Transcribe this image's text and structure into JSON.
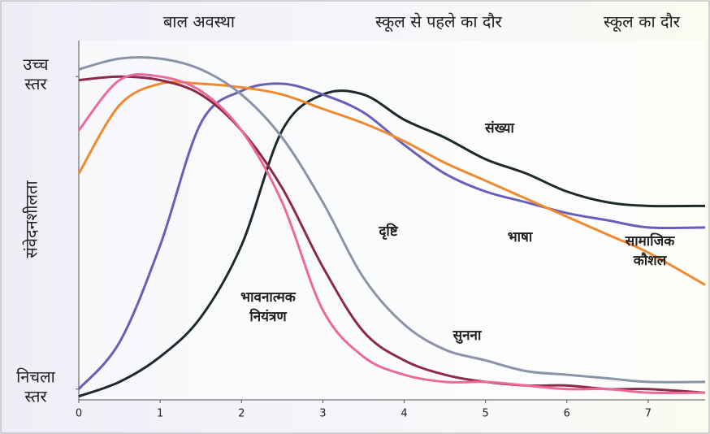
{
  "chart_data": {
    "type": "line",
    "periods": [
      "बाल अवस्था",
      "स्कूल से पहले का दौर",
      "स्कूल का दौर"
    ],
    "y_axis_label": "संवेदनशीलता",
    "x": [
      0,
      0.5,
      1,
      1.5,
      2,
      2.5,
      3,
      3.5,
      4,
      4.5,
      5,
      5.5,
      6,
      6.5,
      7,
      7.7
    ],
    "xlim": [
      0,
      7.7
    ],
    "xticks": [
      0,
      1,
      2,
      3,
      4,
      5,
      6,
      7
    ],
    "ylim": [
      0,
      100
    ],
    "yticks": [
      {
        "value": 90,
        "label": "उच्च स्तर"
      },
      {
        "value": 3,
        "label": "निचला स्तर"
      }
    ],
    "series": [
      {
        "name": "संख्या",
        "color": "#1e2a2a",
        "values": [
          1,
          5,
          12,
          23,
          43,
          75,
          85,
          85,
          78,
          73,
          67,
          63,
          58,
          55,
          54,
          54
        ]
      },
      {
        "name": "भाषा",
        "color": "#6a5fb8",
        "values": [
          3,
          16,
          43,
          77,
          86,
          88,
          85,
          80,
          71,
          63,
          58,
          55,
          52,
          50,
          48,
          48
        ]
      },
      {
        "name": "सामाजिक कौशल",
        "color": "#f08a30",
        "values": [
          63,
          82,
          88,
          88,
          87,
          85,
          81,
          77,
          72,
          66,
          61,
          56,
          51,
          46,
          41,
          32
        ]
      },
      {
        "name": "दृष्टि",
        "color": "#8a93a8",
        "values": [
          92,
          95,
          95,
          92,
          85,
          73,
          55,
          34,
          21,
          14,
          11,
          8,
          7,
          6,
          5,
          5
        ]
      },
      {
        "name": "भावनात्मक नियंत्रण",
        "color": "#8b2a4a",
        "values": [
          89,
          90,
          89,
          85,
          75,
          59,
          37,
          19,
          11,
          7,
          5,
          4,
          4,
          3,
          3,
          2
        ]
      },
      {
        "name": "सुनना",
        "color": "#ec6a9a",
        "values": [
          75,
          89,
          90,
          86,
          75,
          55,
          25,
          12,
          7,
          5,
          5,
          4,
          3,
          3,
          2,
          2
        ]
      }
    ]
  }
}
